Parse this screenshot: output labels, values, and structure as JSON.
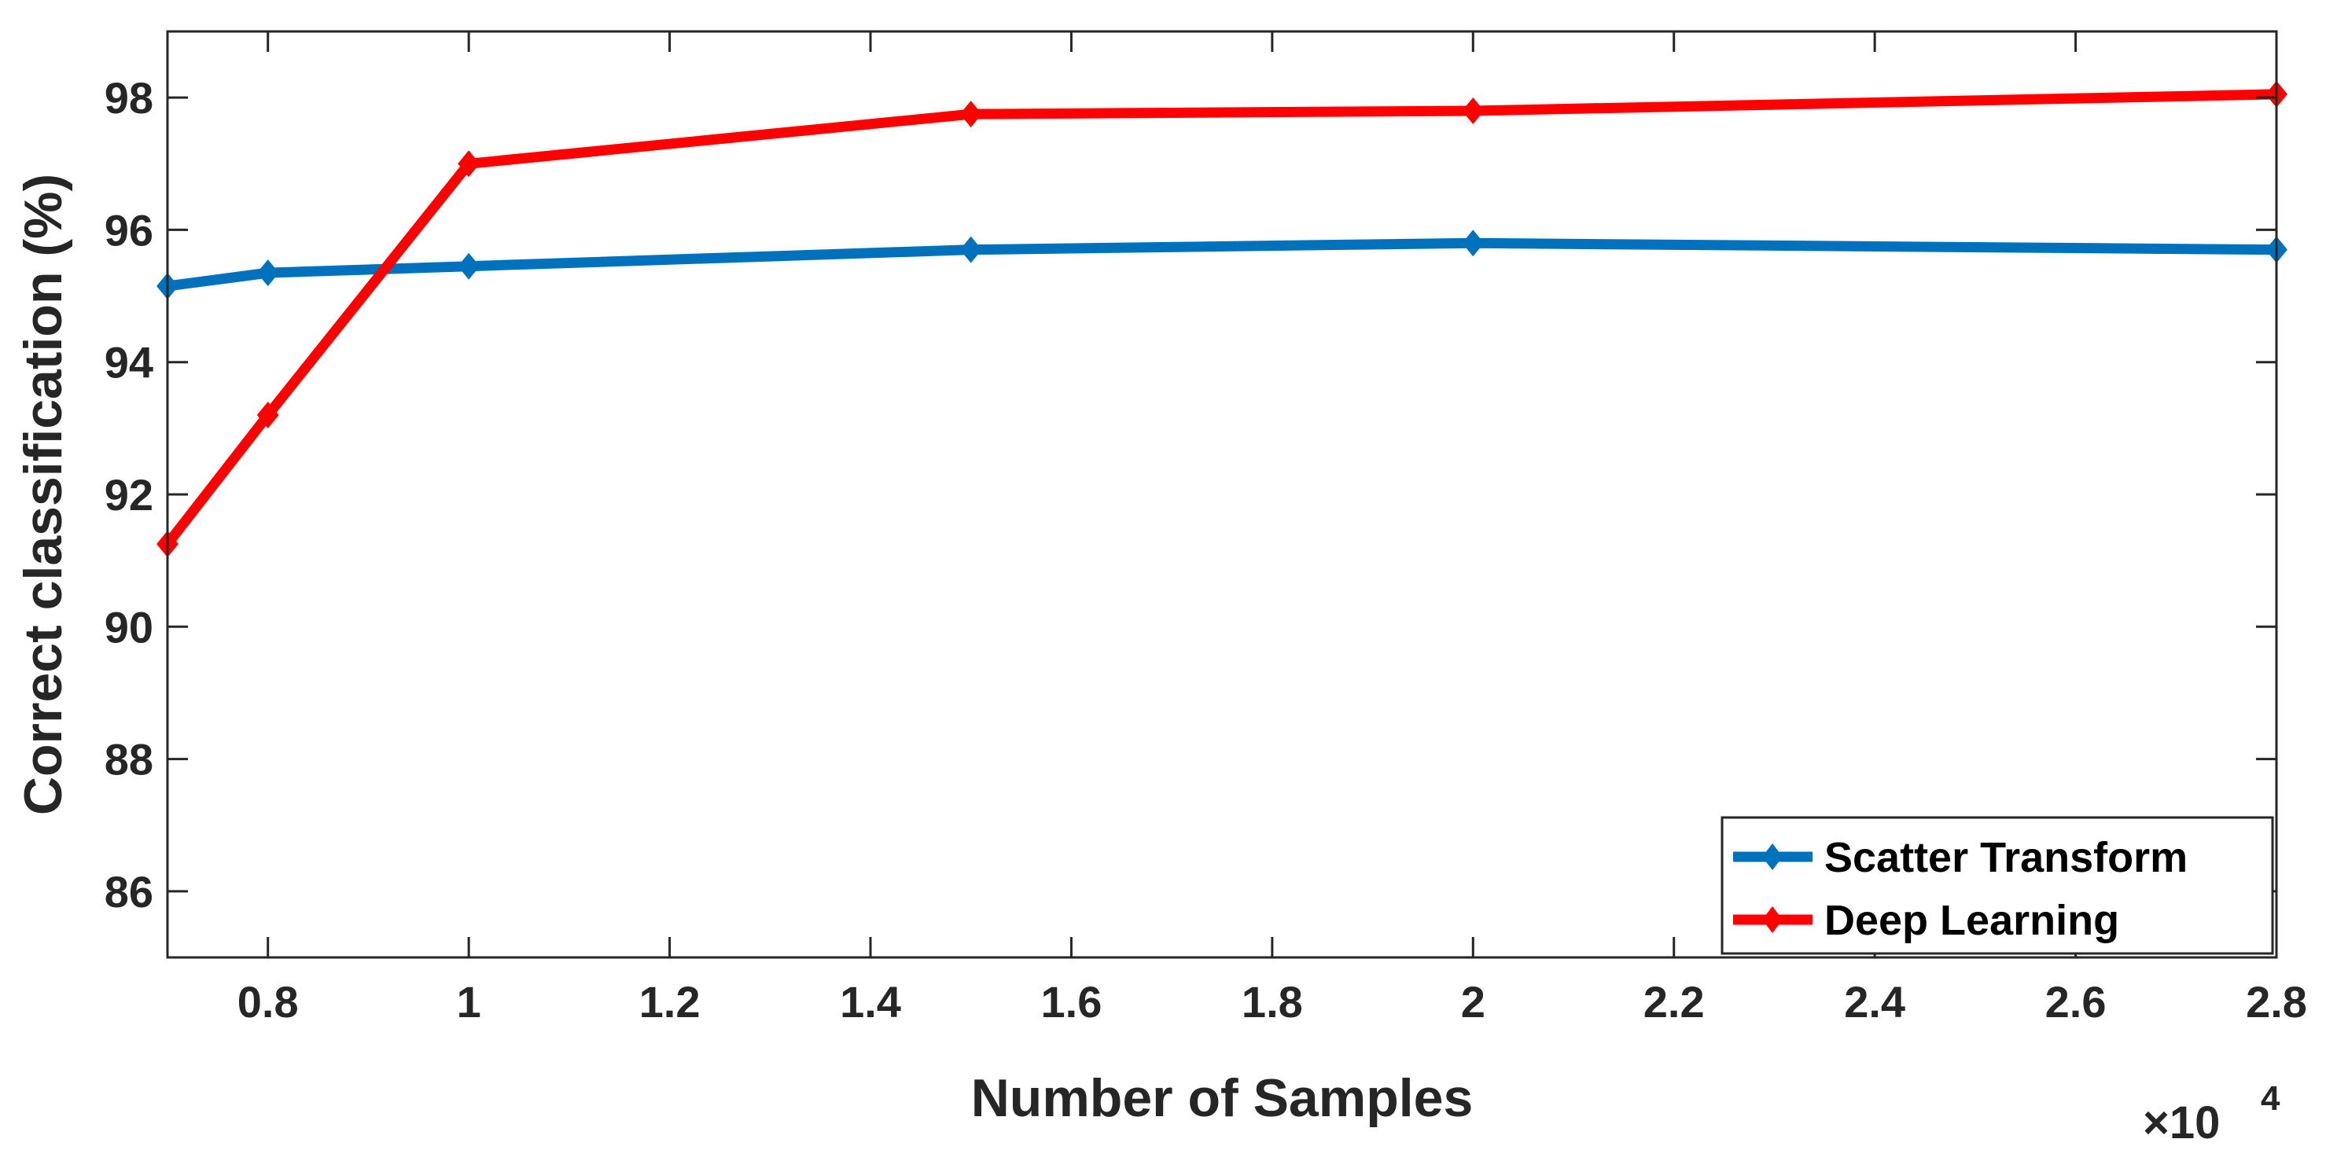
{
  "chart_data": {
    "type": "line",
    "title": "",
    "xlabel": "Number of Samples",
    "ylabel": "Correct classification (%)",
    "x_multiplier_label": "×10",
    "x_multiplier_exponent": "4",
    "x": [
      0.7,
      0.8,
      1.0,
      1.5,
      2.0,
      2.8
    ],
    "xlim": [
      0.7,
      2.8
    ],
    "ylim": [
      85,
      99
    ],
    "xticks": [
      0.8,
      1,
      1.2,
      1.4,
      1.6,
      1.8,
      2,
      2.2,
      2.4,
      2.6,
      2.8
    ],
    "xtick_labels": [
      "0.8",
      "1",
      "1.2",
      "1.4",
      "1.6",
      "1.8",
      "2",
      "2.2",
      "2.4",
      "2.6",
      "2.8"
    ],
    "yticks": [
      86,
      88,
      90,
      92,
      94,
      96,
      98
    ],
    "ytick_labels": [
      "86",
      "88",
      "90",
      "92",
      "94",
      "96",
      "98"
    ],
    "grid": false,
    "legend_position": "bottom-right",
    "series": [
      {
        "name": "Scatter Transform",
        "color": "#0072BD",
        "marker": "diamond",
        "values": [
          95.15,
          95.35,
          95.45,
          95.7,
          95.8,
          95.7
        ]
      },
      {
        "name": "Deep Learning",
        "color": "#FF0000",
        "marker": "diamond",
        "values": [
          91.25,
          93.2,
          97.0,
          97.75,
          97.8,
          98.05
        ]
      }
    ]
  }
}
